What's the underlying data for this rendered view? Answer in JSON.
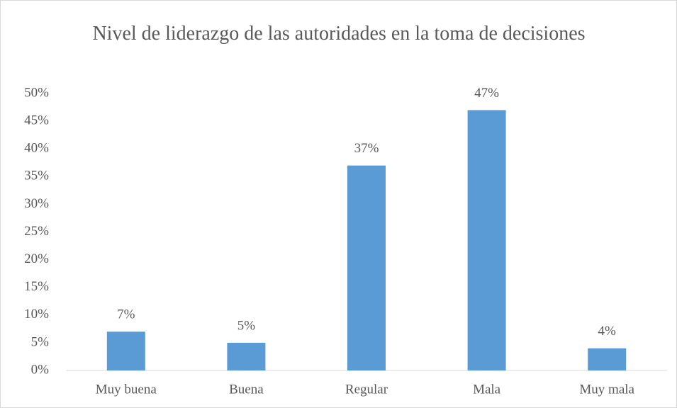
{
  "chart_data": {
    "type": "bar",
    "title": "Nivel de liderazgo de las autoridades en la toma de decisiones",
    "categories": [
      "Muy buena",
      "Buena",
      "Regular",
      "Mala",
      "Muy mala"
    ],
    "values": [
      7,
      5,
      37,
      47,
      4
    ],
    "value_labels": [
      "7%",
      "5%",
      "37%",
      "47%",
      "4%"
    ],
    "color": "#5b9bd5",
    "ylim": [
      0,
      50
    ],
    "yticks": [
      {
        "value": 0,
        "label": "0%"
      },
      {
        "value": 5,
        "label": "5%"
      },
      {
        "value": 10,
        "label": "10%"
      },
      {
        "value": 15,
        "label": "15%"
      },
      {
        "value": 20,
        "label": "20%"
      },
      {
        "value": 25,
        "label": "25%"
      },
      {
        "value": 30,
        "label": "30%"
      },
      {
        "value": 35,
        "label": "35%"
      },
      {
        "value": 40,
        "label": "40%"
      },
      {
        "value": 45,
        "label": "45%"
      },
      {
        "value": 50,
        "label": "50%"
      }
    ],
    "grid": false
  }
}
